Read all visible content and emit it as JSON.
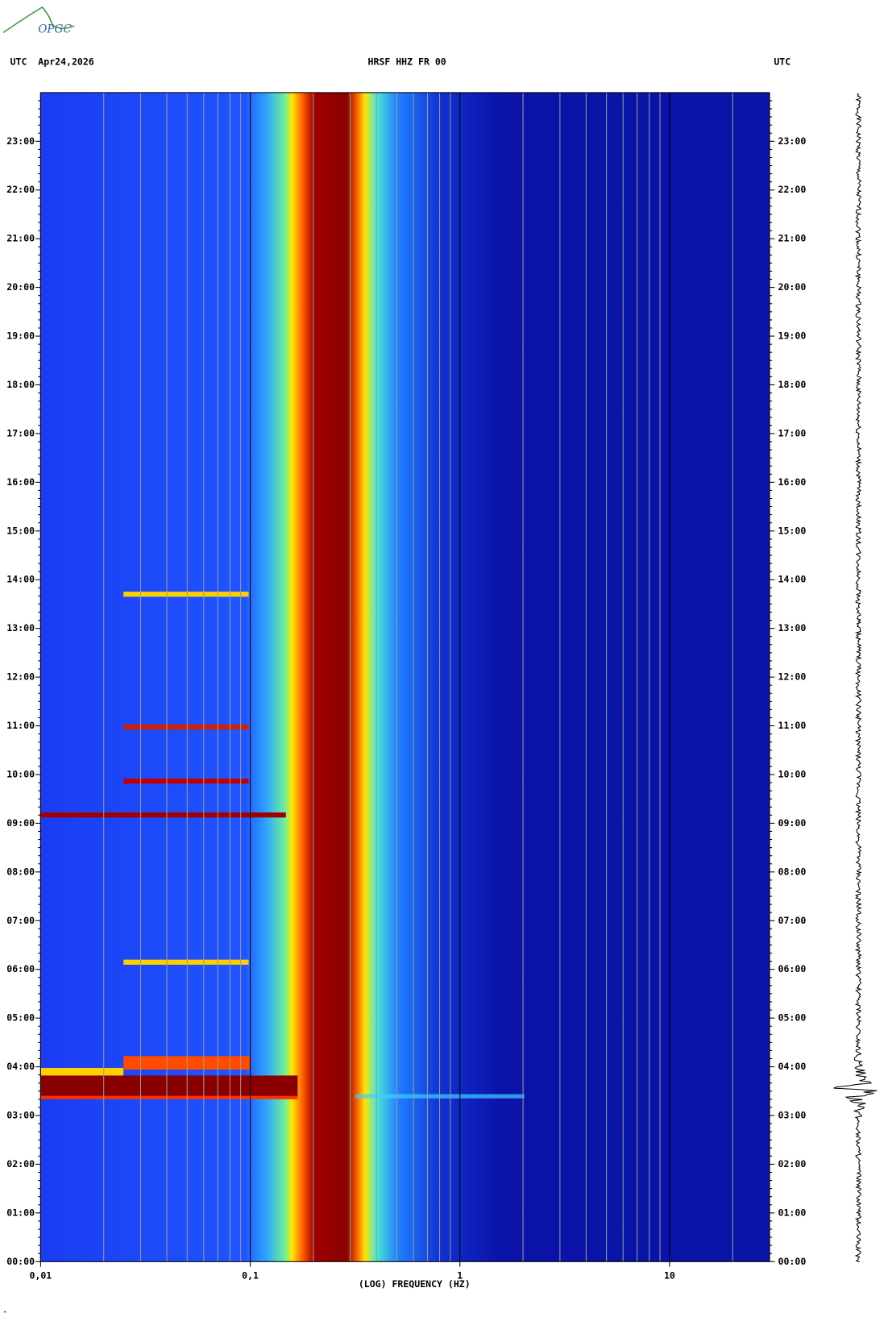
{
  "logo": "OPGC",
  "header": {
    "left": "UTC  Apr24,2026",
    "center": "HRSF HHZ FR 00",
    "right": "UTC"
  },
  "chart_data": {
    "type": "spectrogram",
    "xlabel": "(LOG) FREQUENCY (HZ)",
    "xscale": "log",
    "xlim": [
      0.01,
      30
    ],
    "xticks": [
      {
        "value": 0.01,
        "label": "0,01"
      },
      {
        "value": 0.1,
        "label": "0,1"
      },
      1,
      10
    ],
    "ylim": [
      0,
      24
    ],
    "yticks": [
      {
        "value": 0,
        "label": "00:00"
      },
      {
        "value": 1,
        "label": "01:00"
      },
      {
        "value": 2,
        "label": "02:00"
      },
      {
        "value": 3,
        "label": "03:00"
      },
      {
        "value": 4,
        "label": "04:00"
      },
      {
        "value": 5,
        "label": "05:00"
      },
      {
        "value": 6,
        "label": "06:00"
      },
      {
        "value": 7,
        "label": "07:00"
      },
      {
        "value": 8,
        "label": "08:00"
      },
      {
        "value": 9,
        "label": "09:00"
      },
      {
        "value": 10,
        "label": "10:00"
      },
      {
        "value": 11,
        "label": "11:00"
      },
      {
        "value": 12,
        "label": "12:00"
      },
      {
        "value": 13,
        "label": "13:00"
      },
      {
        "value": 14,
        "label": "14:00"
      },
      {
        "value": 15,
        "label": "15:00"
      },
      {
        "value": 16,
        "label": "16:00"
      },
      {
        "value": 17,
        "label": "17:00"
      },
      {
        "value": 18,
        "label": "18:00"
      },
      {
        "value": 19,
        "label": "19:00"
      },
      {
        "value": 20,
        "label": "20:00"
      },
      {
        "value": 21,
        "label": "21:00"
      },
      {
        "value": 22,
        "label": "22:00"
      },
      {
        "value": 23,
        "label": "23:00"
      }
    ]
  }
}
